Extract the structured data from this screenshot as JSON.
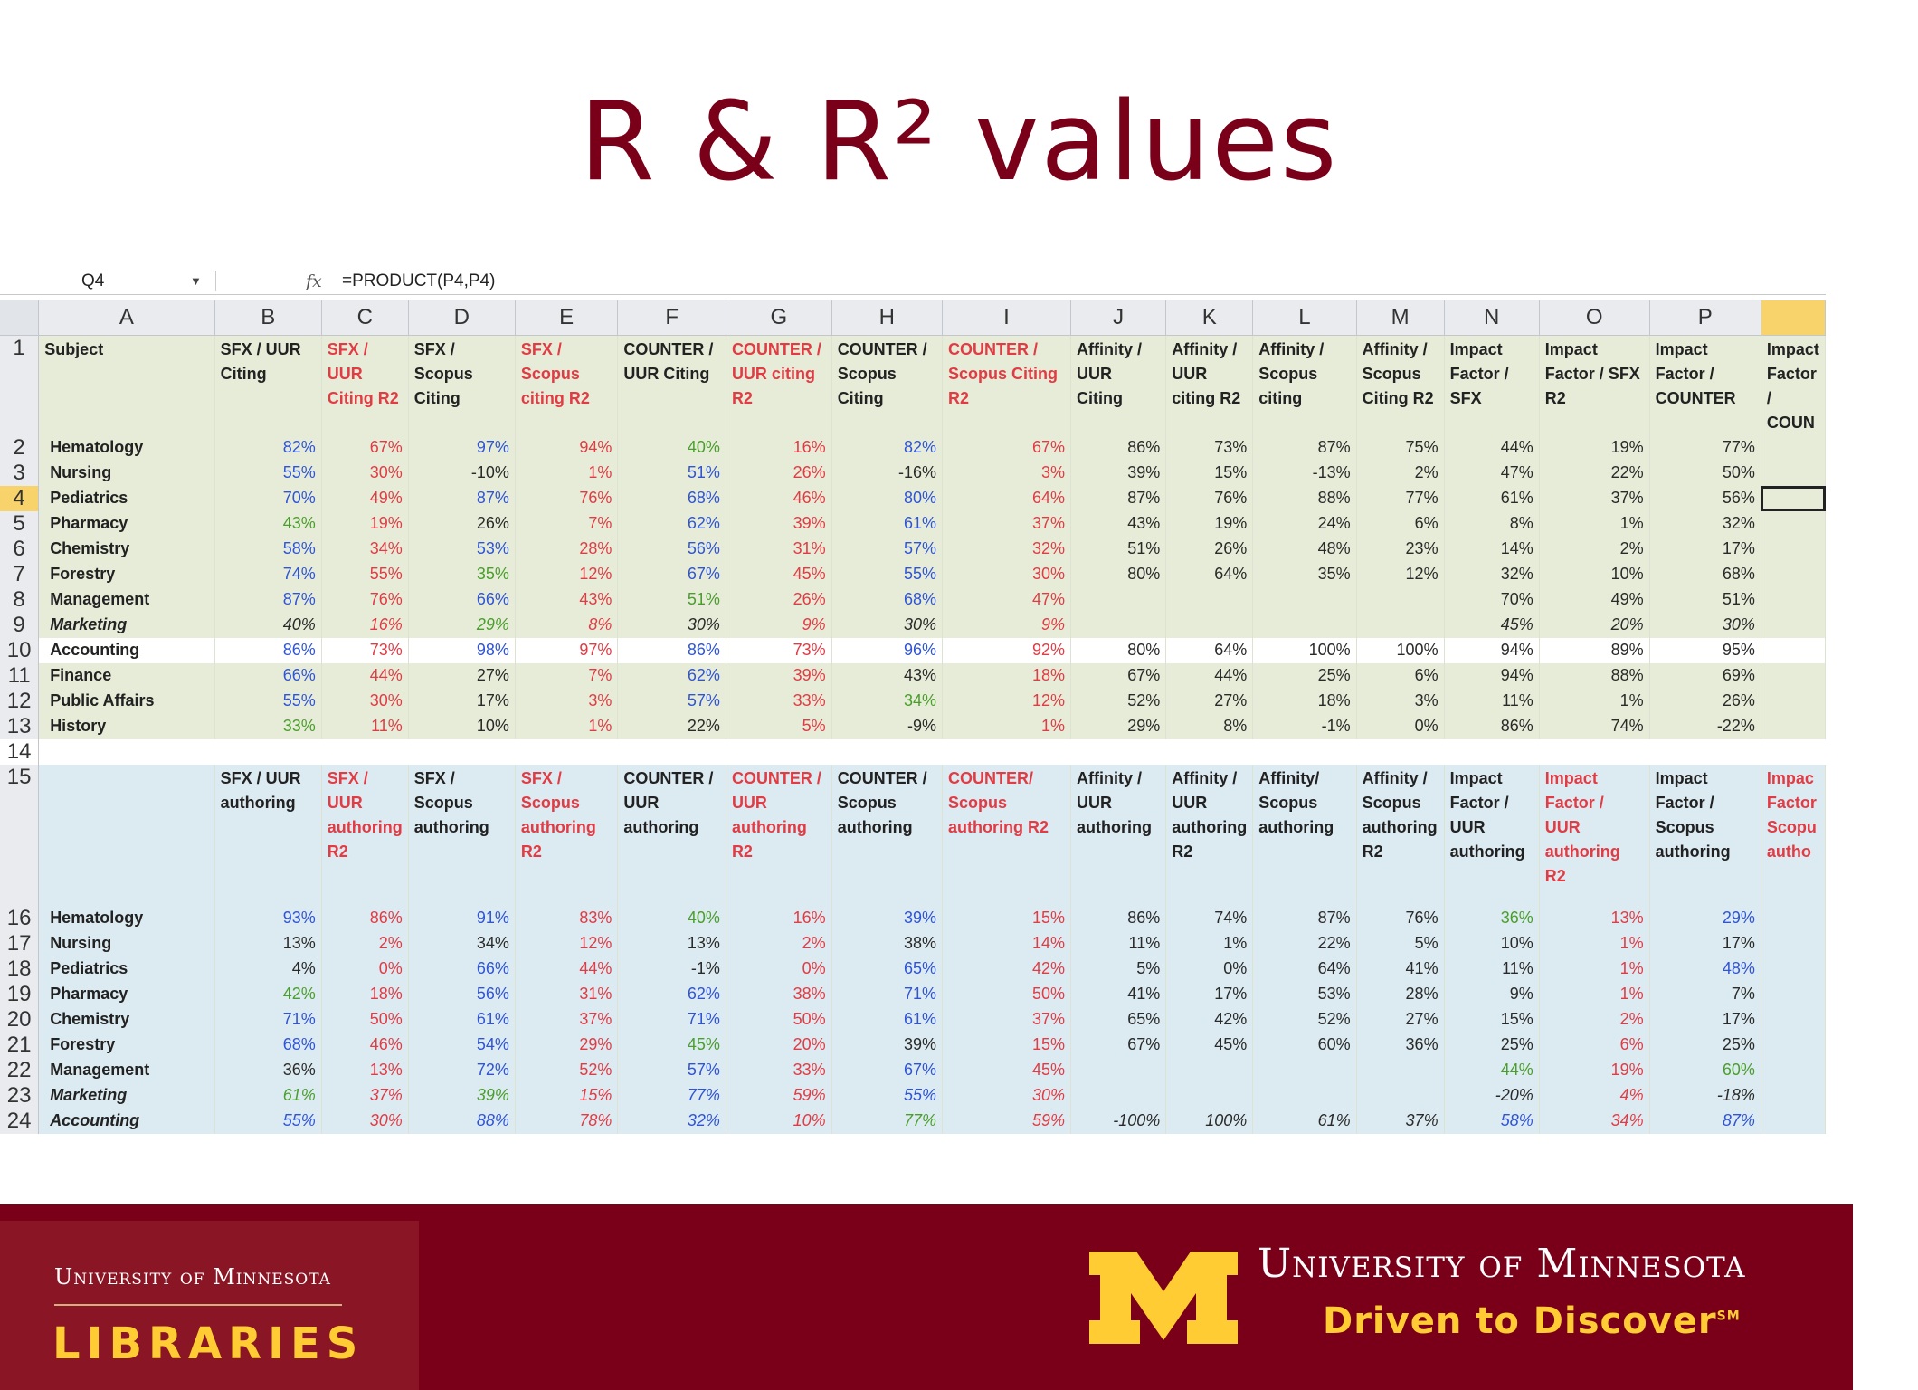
{
  "slide": {
    "title": "R & R² values"
  },
  "spreadsheet": {
    "name_box": "Q4",
    "fx_symbol": "fx",
    "formula": "=PRODUCT(P4,P4)",
    "columns": [
      "A",
      "B",
      "C",
      "D",
      "E",
      "F",
      "G",
      "H",
      "I",
      "J",
      "K",
      "L",
      "M",
      "N",
      "O",
      "P",
      ""
    ],
    "selected_column": "Q",
    "selected_row": "4",
    "header_row_1": {
      "row": "1",
      "cells": [
        {
          "text": "Subject",
          "color": "black"
        },
        {
          "text": "SFX / UUR Citing",
          "color": "black"
        },
        {
          "text": "SFX / UUR Citing R2",
          "color": "red"
        },
        {
          "text": "SFX / Scopus Citing",
          "color": "black"
        },
        {
          "text": "SFX / Scopus citing R2",
          "color": "red"
        },
        {
          "text": "COUNTER / UUR Citing",
          "color": "black"
        },
        {
          "text": "COUNTER / UUR citing R2",
          "color": "red"
        },
        {
          "text": "COUNTER / Scopus Citing",
          "color": "black"
        },
        {
          "text": "COUNTER / Scopus Citing R2",
          "color": "red"
        },
        {
          "text": "Affinity / UUR Citing",
          "color": "black"
        },
        {
          "text": "Affinity / UUR citing R2",
          "color": "black"
        },
        {
          "text": "Affinity / Scopus citing",
          "color": "black"
        },
        {
          "text": "Affinity / Scopus Citing R2",
          "color": "black"
        },
        {
          "text": "Impact Factor / SFX",
          "color": "black"
        },
        {
          "text": "Impact Factor / SFX R2",
          "color": "black"
        },
        {
          "text": "Impact Factor / COUNTER",
          "color": "black"
        },
        {
          "text": "Impact Factor / COUN",
          "color": "black"
        }
      ]
    },
    "rows_top": [
      {
        "row": "2",
        "subject": "Hematology",
        "style": "green",
        "values": [
          "82%",
          "67%",
          "97%",
          "94%",
          "40%",
          "16%",
          "82%",
          "67%",
          "86%",
          "73%",
          "87%",
          "75%",
          "44%",
          "19%",
          "77%"
        ],
        "colors": [
          "blue",
          "red",
          "blue",
          "red",
          "green",
          "red",
          "blue",
          "red",
          "black",
          "black",
          "black",
          "black",
          "black",
          "black",
          "black"
        ]
      },
      {
        "row": "3",
        "subject": "Nursing",
        "style": "green",
        "values": [
          "55%",
          "30%",
          "-10%",
          "1%",
          "51%",
          "26%",
          "-16%",
          "3%",
          "39%",
          "15%",
          "-13%",
          "2%",
          "47%",
          "22%",
          "50%"
        ],
        "colors": [
          "blue",
          "red",
          "black",
          "red",
          "blue",
          "red",
          "black",
          "red",
          "black",
          "black",
          "black",
          "black",
          "black",
          "black",
          "black"
        ]
      },
      {
        "row": "4",
        "subject": "Pediatrics",
        "style": "green",
        "values": [
          "70%",
          "49%",
          "87%",
          "76%",
          "68%",
          "46%",
          "80%",
          "64%",
          "87%",
          "76%",
          "88%",
          "77%",
          "61%",
          "37%",
          "56%"
        ],
        "colors": [
          "blue",
          "red",
          "blue",
          "red",
          "blue",
          "red",
          "blue",
          "red",
          "black",
          "black",
          "black",
          "black",
          "black",
          "black",
          "black"
        ]
      },
      {
        "row": "5",
        "subject": "Pharmacy",
        "style": "green",
        "values": [
          "43%",
          "19%",
          "26%",
          "7%",
          "62%",
          "39%",
          "61%",
          "37%",
          "43%",
          "19%",
          "24%",
          "6%",
          "8%",
          "1%",
          "32%"
        ],
        "colors": [
          "green",
          "red",
          "black",
          "red",
          "blue",
          "red",
          "blue",
          "red",
          "black",
          "black",
          "black",
          "black",
          "black",
          "black",
          "black"
        ]
      },
      {
        "row": "6",
        "subject": "Chemistry",
        "style": "green",
        "values": [
          "58%",
          "34%",
          "53%",
          "28%",
          "56%",
          "31%",
          "57%",
          "32%",
          "51%",
          "26%",
          "48%",
          "23%",
          "14%",
          "2%",
          "17%"
        ],
        "colors": [
          "blue",
          "red",
          "blue",
          "red",
          "blue",
          "red",
          "blue",
          "red",
          "black",
          "black",
          "black",
          "black",
          "black",
          "black",
          "black"
        ]
      },
      {
        "row": "7",
        "subject": "Forestry",
        "style": "green",
        "values": [
          "74%",
          "55%",
          "35%",
          "12%",
          "67%",
          "45%",
          "55%",
          "30%",
          "80%",
          "64%",
          "35%",
          "12%",
          "32%",
          "10%",
          "68%"
        ],
        "colors": [
          "blue",
          "red",
          "green",
          "red",
          "blue",
          "red",
          "blue",
          "red",
          "black",
          "black",
          "black",
          "black",
          "black",
          "black",
          "black"
        ]
      },
      {
        "row": "8",
        "subject": "Management",
        "style": "green",
        "values": [
          "87%",
          "76%",
          "66%",
          "43%",
          "51%",
          "26%",
          "68%",
          "47%",
          "",
          "",
          "",
          "",
          "70%",
          "49%",
          "51%"
        ],
        "colors": [
          "blue",
          "red",
          "blue",
          "red",
          "green",
          "red",
          "blue",
          "red",
          "black",
          "black",
          "black",
          "black",
          "black",
          "black",
          "black"
        ]
      },
      {
        "row": "9",
        "subject": "Marketing",
        "style": "green italic",
        "values": [
          "40%",
          "16%",
          "29%",
          "8%",
          "30%",
          "9%",
          "30%",
          "9%",
          "",
          "",
          "",
          "",
          "45%",
          "20%",
          "30%"
        ],
        "colors": [
          "black",
          "red",
          "green",
          "red",
          "black",
          "red",
          "black",
          "red",
          "black",
          "black",
          "black",
          "black",
          "black",
          "black",
          "black"
        ]
      },
      {
        "row": "10",
        "subject": "Accounting",
        "style": "white",
        "values": [
          "86%",
          "73%",
          "98%",
          "97%",
          "86%",
          "73%",
          "96%",
          "92%",
          "80%",
          "64%",
          "100%",
          "100%",
          "94%",
          "89%",
          "95%"
        ],
        "colors": [
          "blue",
          "red",
          "blue",
          "red",
          "blue",
          "red",
          "blue",
          "red",
          "black",
          "black",
          "black",
          "black",
          "black",
          "black",
          "black"
        ]
      },
      {
        "row": "11",
        "subject": "Finance",
        "style": "green",
        "values": [
          "66%",
          "44%",
          "27%",
          "7%",
          "62%",
          "39%",
          "43%",
          "18%",
          "67%",
          "44%",
          "25%",
          "6%",
          "94%",
          "88%",
          "69%"
        ],
        "colors": [
          "blue",
          "red",
          "black",
          "red",
          "blue",
          "red",
          "black",
          "red",
          "black",
          "black",
          "black",
          "black",
          "black",
          "black",
          "black"
        ]
      },
      {
        "row": "12",
        "subject": "Public Affairs",
        "style": "green",
        "values": [
          "55%",
          "30%",
          "17%",
          "3%",
          "57%",
          "33%",
          "34%",
          "12%",
          "52%",
          "27%",
          "18%",
          "3%",
          "11%",
          "1%",
          "26%"
        ],
        "colors": [
          "blue",
          "red",
          "black",
          "red",
          "blue",
          "red",
          "green",
          "red",
          "black",
          "black",
          "black",
          "black",
          "black",
          "black",
          "black"
        ]
      },
      {
        "row": "13",
        "subject": "History",
        "style": "green",
        "values": [
          "33%",
          "11%",
          "10%",
          "1%",
          "22%",
          "5%",
          "-9%",
          "1%",
          "29%",
          "8%",
          "-1%",
          "0%",
          "86%",
          "74%",
          "-22%"
        ],
        "colors": [
          "green",
          "red",
          "black",
          "red",
          "black",
          "red",
          "black",
          "red",
          "black",
          "black",
          "black",
          "black",
          "black",
          "black",
          "black"
        ]
      }
    ],
    "gap_row": "14",
    "header_row_2": {
      "row": "15",
      "cells": [
        {
          "text": "",
          "color": "black"
        },
        {
          "text": "SFX / UUR authoring",
          "color": "black"
        },
        {
          "text": "SFX / UUR authoring R2",
          "color": "red"
        },
        {
          "text": "SFX / Scopus authoring",
          "color": "black"
        },
        {
          "text": "SFX / Scopus authoring R2",
          "color": "red"
        },
        {
          "text": "COUNTER / UUR authoring",
          "color": "black"
        },
        {
          "text": "COUNTER / UUR authoring R2",
          "color": "red"
        },
        {
          "text": "COUNTER / Scopus authoring",
          "color": "black"
        },
        {
          "text": "COUNTER/ Scopus authoring R2",
          "color": "red"
        },
        {
          "text": "Affinity / UUR authoring",
          "color": "black"
        },
        {
          "text": "Affinity / UUR authoring R2",
          "color": "black"
        },
        {
          "text": "Affinity/ Scopus authoring",
          "color": "black"
        },
        {
          "text": "Affinity / Scopus authoring R2",
          "color": "black"
        },
        {
          "text": "Impact Factor / UUR authoring",
          "color": "black"
        },
        {
          "text": "Impact Factor / UUR authoring R2",
          "color": "red"
        },
        {
          "text": "Impact Factor / Scopus authoring",
          "color": "black"
        },
        {
          "text": "Impac Factor Scopu autho",
          "color": "red"
        }
      ]
    },
    "rows_bottom": [
      {
        "row": "16",
        "subject": "Hematology",
        "style": "blue",
        "values": [
          "93%",
          "86%",
          "91%",
          "83%",
          "40%",
          "16%",
          "39%",
          "15%",
          "86%",
          "74%",
          "87%",
          "76%",
          "36%",
          "13%",
          "29%"
        ],
        "colors": [
          "blue",
          "red",
          "blue",
          "red",
          "green",
          "red",
          "blue",
          "red",
          "black",
          "black",
          "black",
          "black",
          "green",
          "red",
          "blue"
        ]
      },
      {
        "row": "17",
        "subject": "Nursing",
        "style": "blue",
        "values": [
          "13%",
          "2%",
          "34%",
          "12%",
          "13%",
          "2%",
          "38%",
          "14%",
          "11%",
          "1%",
          "22%",
          "5%",
          "10%",
          "1%",
          "17%"
        ],
        "colors": [
          "black",
          "red",
          "black",
          "red",
          "black",
          "red",
          "black",
          "red",
          "black",
          "black",
          "black",
          "black",
          "black",
          "red",
          "black"
        ]
      },
      {
        "row": "18",
        "subject": "Pediatrics",
        "style": "blue",
        "values": [
          "4%",
          "0%",
          "66%",
          "44%",
          "-1%",
          "0%",
          "65%",
          "42%",
          "5%",
          "0%",
          "64%",
          "41%",
          "11%",
          "1%",
          "48%"
        ],
        "colors": [
          "black",
          "red",
          "blue",
          "red",
          "black",
          "red",
          "blue",
          "red",
          "black",
          "black",
          "black",
          "black",
          "black",
          "red",
          "blue"
        ]
      },
      {
        "row": "19",
        "subject": "Pharmacy",
        "style": "blue",
        "values": [
          "42%",
          "18%",
          "56%",
          "31%",
          "62%",
          "38%",
          "71%",
          "50%",
          "41%",
          "17%",
          "53%",
          "28%",
          "9%",
          "1%",
          "7%"
        ],
        "colors": [
          "green",
          "red",
          "blue",
          "red",
          "blue",
          "red",
          "blue",
          "red",
          "black",
          "black",
          "black",
          "black",
          "black",
          "red",
          "black"
        ]
      },
      {
        "row": "20",
        "subject": "Chemistry",
        "style": "blue",
        "values": [
          "71%",
          "50%",
          "61%",
          "37%",
          "71%",
          "50%",
          "61%",
          "37%",
          "65%",
          "42%",
          "52%",
          "27%",
          "15%",
          "2%",
          "17%"
        ],
        "colors": [
          "blue",
          "red",
          "blue",
          "red",
          "blue",
          "red",
          "blue",
          "red",
          "black",
          "black",
          "black",
          "black",
          "black",
          "red",
          "black"
        ]
      },
      {
        "row": "21",
        "subject": "Forestry",
        "style": "blue",
        "values": [
          "68%",
          "46%",
          "54%",
          "29%",
          "45%",
          "20%",
          "39%",
          "15%",
          "67%",
          "45%",
          "60%",
          "36%",
          "25%",
          "6%",
          "25%"
        ],
        "colors": [
          "blue",
          "red",
          "blue",
          "red",
          "green",
          "red",
          "black",
          "red",
          "black",
          "black",
          "black",
          "black",
          "black",
          "red",
          "black"
        ]
      },
      {
        "row": "22",
        "subject": "Management",
        "style": "blue",
        "values": [
          "36%",
          "13%",
          "72%",
          "52%",
          "57%",
          "33%",
          "67%",
          "45%",
          "",
          "",
          "",
          "",
          "44%",
          "19%",
          "60%"
        ],
        "colors": [
          "black",
          "red",
          "blue",
          "red",
          "blue",
          "red",
          "blue",
          "red",
          "black",
          "black",
          "black",
          "black",
          "green",
          "red",
          "green"
        ]
      },
      {
        "row": "23",
        "subject": "Marketing",
        "style": "blue italic",
        "values": [
          "61%",
          "37%",
          "39%",
          "15%",
          "77%",
          "59%",
          "55%",
          "30%",
          "",
          "",
          "",
          "",
          "-20%",
          "4%",
          "-18%"
        ],
        "colors": [
          "green",
          "red",
          "green",
          "red",
          "blue",
          "red",
          "blue",
          "red",
          "black",
          "black",
          "black",
          "black",
          "black",
          "red",
          "black"
        ]
      },
      {
        "row": "24",
        "subject": "Accounting",
        "style": "blue italic",
        "values": [
          "55%",
          "30%",
          "88%",
          "78%",
          "32%",
          "10%",
          "77%",
          "59%",
          "-100%",
          "100%",
          "61%",
          "37%",
          "58%",
          "34%",
          "87%"
        ],
        "colors": [
          "blue",
          "red",
          "blue",
          "red",
          "blue",
          "red",
          "green",
          "red",
          "black",
          "black",
          "black",
          "black",
          "blue",
          "red",
          "blue"
        ]
      }
    ]
  },
  "footer": {
    "left_university": "University of Minnesota",
    "left_libraries": "LIBRARIES",
    "right_university": "University of Minnesota",
    "tagline": "Driven to Discover",
    "tagline_mark": "SM",
    "logo_color": "#ffcc33",
    "brand_maroon": "#7a0019"
  }
}
